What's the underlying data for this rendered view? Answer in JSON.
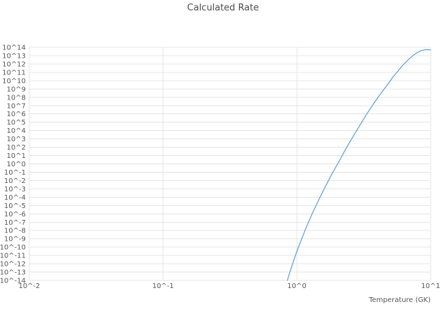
{
  "chart_data": {
    "type": "line",
    "title": "Calculated Rate",
    "xlabel": "Temperature (GK)",
    "ylabel": "",
    "x_scale": "log",
    "y_scale": "log",
    "grid": true,
    "legend": "none",
    "x_log_range": [
      -2,
      1
    ],
    "y_log_range": [
      -14,
      14
    ],
    "x_ticks": [
      {
        "exp": -2,
        "label": "10^-2"
      },
      {
        "exp": -1,
        "label": "10^-1"
      },
      {
        "exp": 0,
        "label": "10^0"
      },
      {
        "exp": 1,
        "label": "10^1"
      }
    ],
    "y_ticks": [
      {
        "exp": 14,
        "label": "10^14"
      },
      {
        "exp": 13,
        "label": "10^13"
      },
      {
        "exp": 12,
        "label": "10^12"
      },
      {
        "exp": 11,
        "label": "10^11"
      },
      {
        "exp": 10,
        "label": "10^10"
      },
      {
        "exp": 9,
        "label": "10^9"
      },
      {
        "exp": 8,
        "label": "10^8"
      },
      {
        "exp": 7,
        "label": "10^7"
      },
      {
        "exp": 6,
        "label": "10^6"
      },
      {
        "exp": 5,
        "label": "10^5"
      },
      {
        "exp": 4,
        "label": "10^4"
      },
      {
        "exp": 3,
        "label": "10^3"
      },
      {
        "exp": 2,
        "label": "10^2"
      },
      {
        "exp": 1,
        "label": "10^1"
      },
      {
        "exp": 0,
        "label": "10^0"
      },
      {
        "exp": -1,
        "label": "10^-1"
      },
      {
        "exp": -2,
        "label": "10^-2"
      },
      {
        "exp": -3,
        "label": "10^-3"
      },
      {
        "exp": -4,
        "label": "10^-4"
      },
      {
        "exp": -5,
        "label": "10^-5"
      },
      {
        "exp": -6,
        "label": "10^-6"
      },
      {
        "exp": -7,
        "label": "10^-7"
      },
      {
        "exp": -8,
        "label": "10^-8"
      },
      {
        "exp": -9,
        "label": "10^-9"
      },
      {
        "exp": -10,
        "label": "10^-10"
      },
      {
        "exp": -11,
        "label": "10^-11"
      },
      {
        "exp": -12,
        "label": "10^-12"
      },
      {
        "exp": -13,
        "label": "10^-13"
      },
      {
        "exp": -14,
        "label": "10^-14"
      }
    ],
    "series": [
      {
        "name": "calculated-rate",
        "color": "#5b9bd5",
        "x_T_GK": [
          0.85,
          0.87,
          0.9,
          0.93,
          0.97,
          1.0,
          1.05,
          1.1,
          1.15,
          1.2,
          1.3,
          1.4,
          1.5,
          1.6,
          1.7,
          1.8,
          1.95,
          2.1,
          2.3,
          2.5,
          2.75,
          3.0,
          3.3,
          3.6,
          4.0,
          4.4,
          4.8,
          5.2,
          5.6,
          6.0,
          6.5,
          7.0,
          7.5,
          8.0,
          8.5,
          9.0,
          9.5,
          10.0
        ],
        "log10_rate": [
          -14.0,
          -13.4,
          -12.7,
          -12.0,
          -11.1,
          -10.5,
          -9.6,
          -8.8,
          -8.0,
          -7.3,
          -6.0,
          -4.9,
          -3.9,
          -3.0,
          -2.2,
          -1.4,
          -0.4,
          0.5,
          1.7,
          2.7,
          3.8,
          4.8,
          5.9,
          6.8,
          7.9,
          8.8,
          9.6,
          10.4,
          11.0,
          11.6,
          12.2,
          12.7,
          13.1,
          13.4,
          13.6,
          13.7,
          13.72,
          13.68
        ]
      }
    ]
  },
  "colors": {
    "grid": "#e4e4e4",
    "tick_text": "#555555",
    "title_text": "#4a4a4a",
    "line": "#5b9bd5",
    "background": "#ffffff"
  }
}
